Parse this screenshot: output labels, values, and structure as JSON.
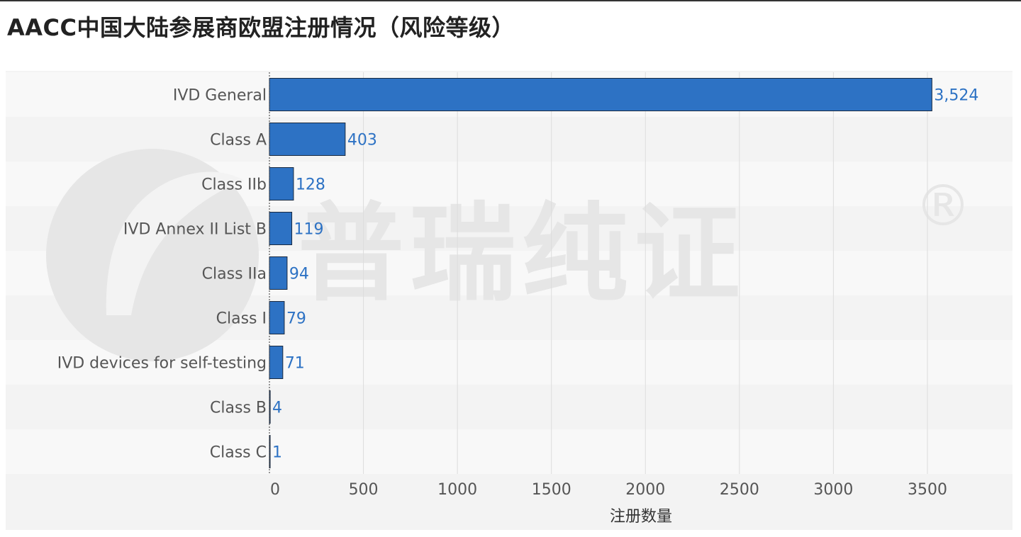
{
  "title": "AACC中国大陆参展商欧盟注册情况（风险等级）",
  "watermark": {
    "text": "普瑞纯证",
    "mark": "®"
  },
  "colors": {
    "bar": "#2d72c4",
    "bar_border": "#1a2a40",
    "value_label": "#2d72c4",
    "band_dark": "#f3f3f3",
    "band_light": "#f8f8f8",
    "grid": "#dddddd"
  },
  "chart_data": {
    "type": "bar",
    "orientation": "horizontal",
    "categories": [
      "IVD General",
      "Class A",
      "Class IIb",
      "IVD Annex II List B",
      "Class IIa",
      "Class I",
      "IVD devices for self-testing",
      "Class B",
      "Class C"
    ],
    "values": [
      3524,
      403,
      128,
      119,
      94,
      79,
      71,
      4,
      1
    ],
    "value_labels": [
      "3,524",
      "403",
      "128",
      "119",
      "94",
      "79",
      "71",
      "4",
      "1"
    ],
    "xlabel": "注册数量",
    "ylabel": "",
    "xlim": [
      0,
      3900
    ],
    "xticks": [
      0,
      500,
      1000,
      1500,
      2000,
      2500,
      3000,
      3500
    ],
    "xtick_labels": [
      "0",
      "500",
      "1000",
      "1500",
      "2000",
      "2500",
      "3000",
      "3500"
    ],
    "grid": "vertical",
    "legend": "none"
  }
}
